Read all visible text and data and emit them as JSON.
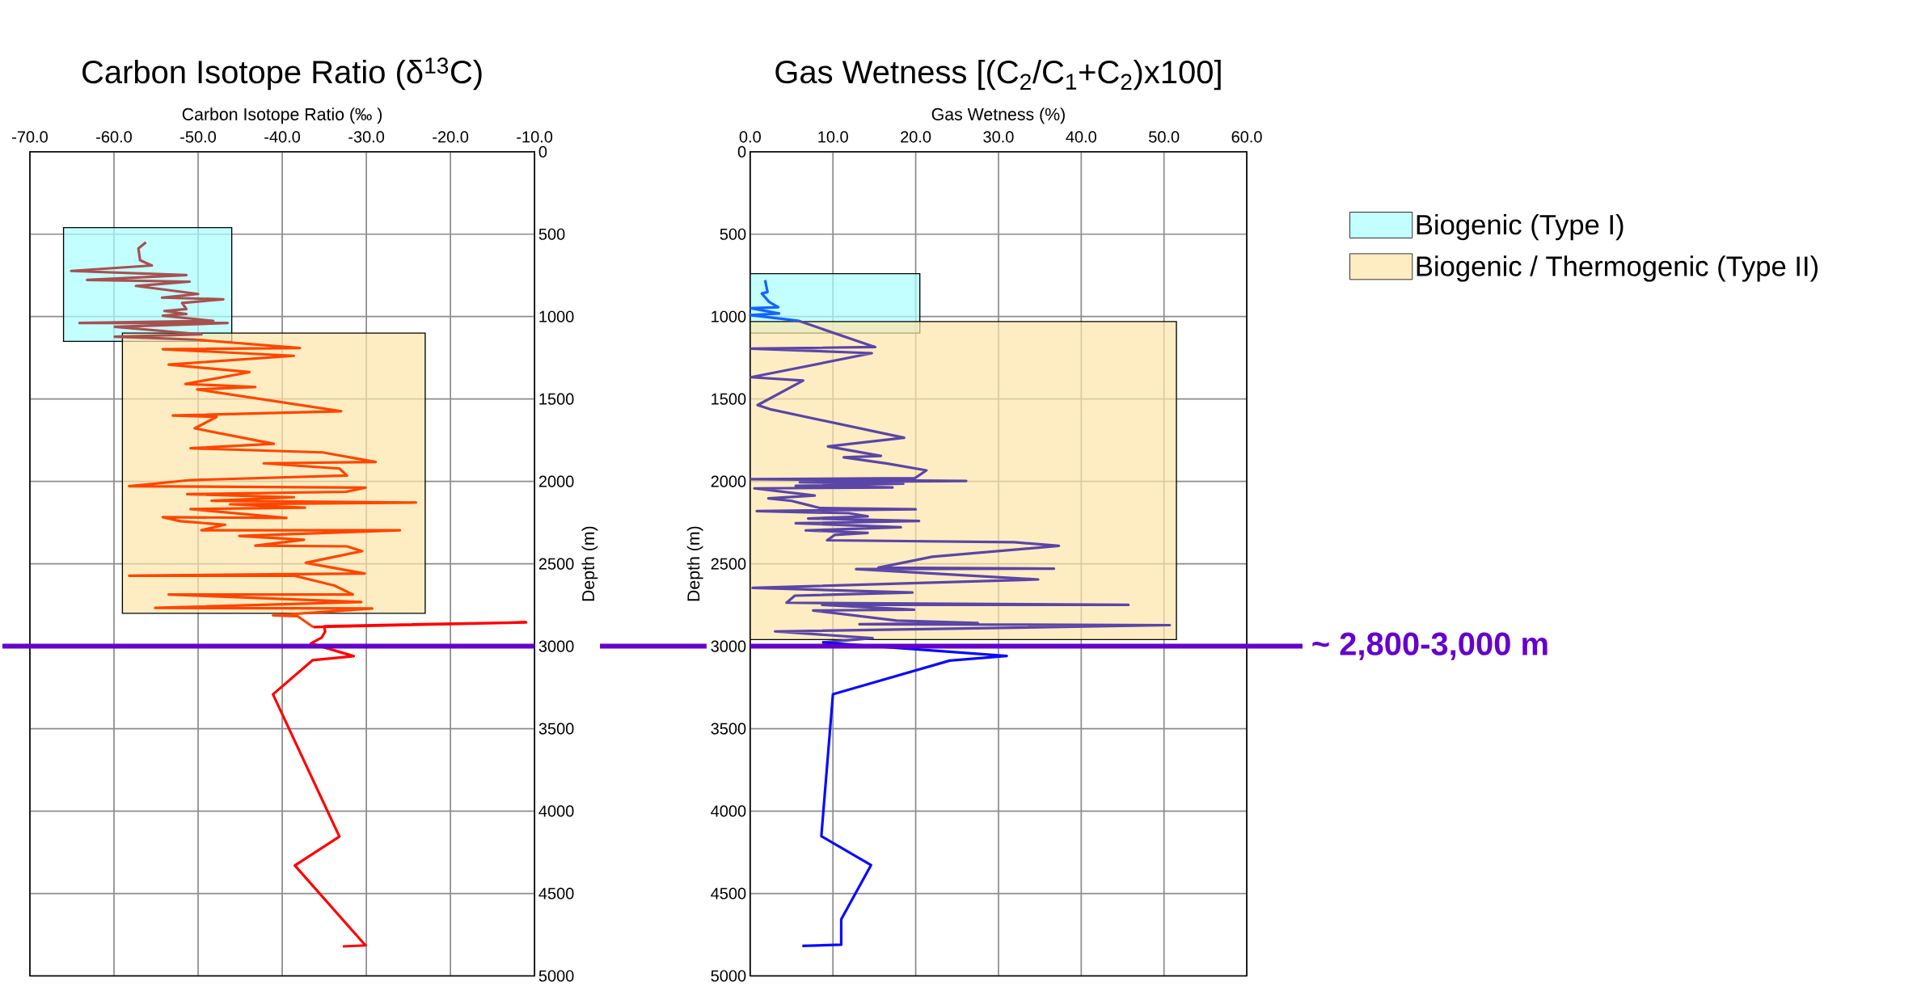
{
  "chart_data": [
    {
      "type": "line",
      "title": "Carbon Isotope Ratio (δ$^{13}$C)",
      "xlabel": "Carbon Isotope Ratio (‰ )",
      "ylabel": "Depth (m)",
      "xlim": [
        -70,
        -10
      ],
      "ylim": [
        5000,
        0
      ],
      "xticks": [
        {
          "value": -70,
          "label": "-70.0"
        },
        {
          "value": -60,
          "label": "-60.0"
        },
        {
          "value": -50,
          "label": "-50.0"
        },
        {
          "value": -40,
          "label": "-40.0"
        },
        {
          "value": -30,
          "label": "-30.0"
        },
        {
          "value": -20,
          "label": "-20.0"
        },
        {
          "value": -10,
          "label": "-10.0"
        }
      ],
      "yticks": [
        0,
        500,
        1000,
        1500,
        2000,
        2500,
        3000,
        3500,
        4000,
        4500,
        5000
      ],
      "grid": true,
      "series": [
        {
          "type": "area",
          "color": "#a9ffff",
          "x": [
            -66,
            -46,
            -46,
            -66
          ],
          "values": [
            460,
            460,
            1150,
            1150
          ]
        },
        {
          "type": "area",
          "color": "#fde6a8",
          "x": [
            -59,
            -23,
            -23,
            -59
          ],
          "values": [
            1100,
            1100,
            2800,
            2800
          ]
        },
        {
          "color": "#a85050",
          "x": [
            -56.2,
            -57.1,
            -56.9,
            -55.5,
            -65.1,
            -51.4,
            -63.2,
            -51.0,
            -57.4,
            -50.0,
            -54.3,
            -47.0,
            -51.9,
            -51.4,
            -54.0,
            -51.4,
            -54.2,
            -48.2,
            -64.1,
            -46.5,
            -59.9,
            -49.6,
            -59.9,
            -50.3
          ],
          "values": [
            549,
            587,
            658,
            690,
            723,
            748,
            778,
            788,
            814,
            863,
            885,
            895,
            917,
            954,
            966,
            984,
            995,
            1026,
            1039,
            1039,
            1062,
            1108,
            1122,
            1140
          ]
        },
        {
          "color": "#ff4500",
          "x": [
            -50.3,
            -37.9,
            -54.2,
            -38.6,
            -53.5,
            -43.9,
            -51.5,
            -43.2,
            -50.1,
            -33.0,
            -53.0,
            -47.8,
            -50.4,
            -41.0,
            -50.9,
            -35.2,
            -28.9,
            -42.2,
            -33.2,
            -32.3,
            -50.9,
            -58.2,
            -30.1,
            -32.4,
            -51.3,
            -38.6,
            -48.4,
            -24.1,
            -46.2,
            -37.3,
            -50.9,
            -39.5,
            -54.2,
            -52.1,
            -46.8,
            -49.6,
            -26.0,
            -45.1,
            -37.4,
            -43.2,
            -32.3,
            -30.5,
            -37.2,
            -30.2,
            -58.2,
            -38.6,
            -33.8,
            -31.6,
            -53.5,
            -30.6,
            -55.1,
            -29.3,
            -41.1,
            -38.2,
            -36.3
          ],
          "values": [
            1140,
            1191,
            1198,
            1238,
            1291,
            1337,
            1409,
            1427,
            1442,
            1574,
            1600,
            1609,
            1678,
            1772,
            1799,
            1824,
            1882,
            1890,
            1922,
            1964,
            1992,
            2029,
            2038,
            2063,
            2077,
            2096,
            2117,
            2128,
            2139,
            2159,
            2168,
            2222,
            2217,
            2241,
            2263,
            2296,
            2296,
            2331,
            2354,
            2390,
            2394,
            2423,
            2494,
            2559,
            2572,
            2572,
            2632,
            2686,
            2686,
            2732,
            2767,
            2771,
            2813,
            2817,
            2884
          ]
        },
        {
          "color": "#ff0000",
          "x": [
            -36.3,
            -11,
            -35.0,
            -34.9,
            -35.3,
            -36.6,
            -31.5,
            -36.4,
            -41.1,
            -33.2,
            -38.5,
            -30.1,
            -32.8
          ],
          "values": [
            2884,
            2855,
            2878,
            2911,
            2947,
            2983,
            3060,
            3085,
            3292,
            4155,
            4330,
            4815,
            4821
          ]
        }
      ],
      "ref_lines": [
        {
          "axis": "y",
          "value": 3000,
          "color": "#6600cc"
        }
      ]
    },
    {
      "type": "line",
      "title": "Gas Wetness [(C$_{2}$/C$_{1}$+C$_{2}$)x100]",
      "xlabel": "Gas Wetness (%)",
      "ylabel": "Depth (m)",
      "xlim": [
        0,
        60
      ],
      "ylim": [
        5000,
        0
      ],
      "xticks": [
        {
          "value": 0,
          "label": "0.0"
        },
        {
          "value": 10,
          "label": "10.0"
        },
        {
          "value": 20,
          "label": "20.0"
        },
        {
          "value": 30,
          "label": "30.0"
        },
        {
          "value": 40,
          "label": "40.0"
        },
        {
          "value": 50,
          "label": "50.0"
        },
        {
          "value": 60,
          "label": "60.0"
        }
      ],
      "yticks": [
        0,
        500,
        1000,
        1500,
        2000,
        2500,
        3000,
        3500,
        4000,
        4500,
        5000
      ],
      "grid": true,
      "legend": "right",
      "series": [
        {
          "type": "area",
          "name": "Biogenic (Type I)",
          "color": "#a9ffff",
          "x": [
            0,
            20.5,
            20.5,
            0
          ],
          "values": [
            740,
            740,
            1100,
            1100
          ]
        },
        {
          "type": "area",
          "name": "Biogenic / Thermogenic (Type II)",
          "color": "#fde6a8",
          "x": [
            0,
            51.5,
            51.5,
            0
          ],
          "values": [
            1030,
            1030,
            2960,
            2960
          ]
        },
        {
          "color": "#1464ff",
          "x": [
            1.8,
            2.1,
            1.4,
            2.3,
            3.4,
            0.1,
            3.5,
            0,
            5.8
          ],
          "values": [
            779,
            851,
            860,
            911,
            943,
            949,
            981,
            991,
            1025
          ]
        },
        {
          "color": "#5a45a8",
          "x": [
            5.8,
            15.1,
            0.1,
            14.7,
            0.1,
            6.4,
            0.9,
            2.4,
            18.6,
            9.4,
            15.8,
            11.3,
            16.6,
            21.3,
            19.9,
            0.1,
            26.1,
            6.0,
            18.5,
            5.5,
            17.2,
            0.5,
            7.8,
            2.2,
            5.0,
            6.9,
            8.4,
            20.0,
            0.8,
            11.9,
            14.2,
            7.0,
            20.4,
            5.5,
            18.2,
            6.7,
            14.2,
            10.2,
            9.3,
            31.9,
            37.3,
            22.0,
            15.5,
            36.7,
            12.8,
            34.8,
            0.3,
            19.6,
            5.4,
            4.4,
            45.7,
            8.7,
            19.8,
            7.6,
            17.7,
            27.5,
            13.2,
            50.7,
            3.0,
            14.8,
            8.7
          ],
          "values": [
            1025,
            1185,
            1194,
            1222,
            1368,
            1388,
            1537,
            1562,
            1735,
            1788,
            1845,
            1854,
            1892,
            1933,
            1980,
            1986,
            1997,
            2005,
            2014,
            2027,
            2037,
            2042,
            2086,
            2103,
            2118,
            2142,
            2161,
            2169,
            2180,
            2193,
            2212,
            2225,
            2240,
            2254,
            2278,
            2297,
            2312,
            2325,
            2357,
            2369,
            2391,
            2457,
            2523,
            2529,
            2532,
            2595,
            2646,
            2674,
            2693,
            2736,
            2749,
            2749,
            2778,
            2783,
            2844,
            2859,
            2866,
            2872,
            2910,
            2951,
            2977
          ]
        },
        {
          "color": "#0a0aff",
          "x": [
            8.7,
            31.0,
            24.1,
            10.0,
            8.6,
            14.6,
            11.0,
            11.0,
            6.3
          ],
          "values": [
            2977,
            3059,
            3087,
            3291,
            4152,
            4328,
            4657,
            4811,
            4818
          ]
        }
      ],
      "ref_lines": [
        {
          "axis": "y",
          "value": 3000,
          "color": "#6600cc",
          "label": "~ 2,800-3,000 m"
        }
      ]
    }
  ]
}
